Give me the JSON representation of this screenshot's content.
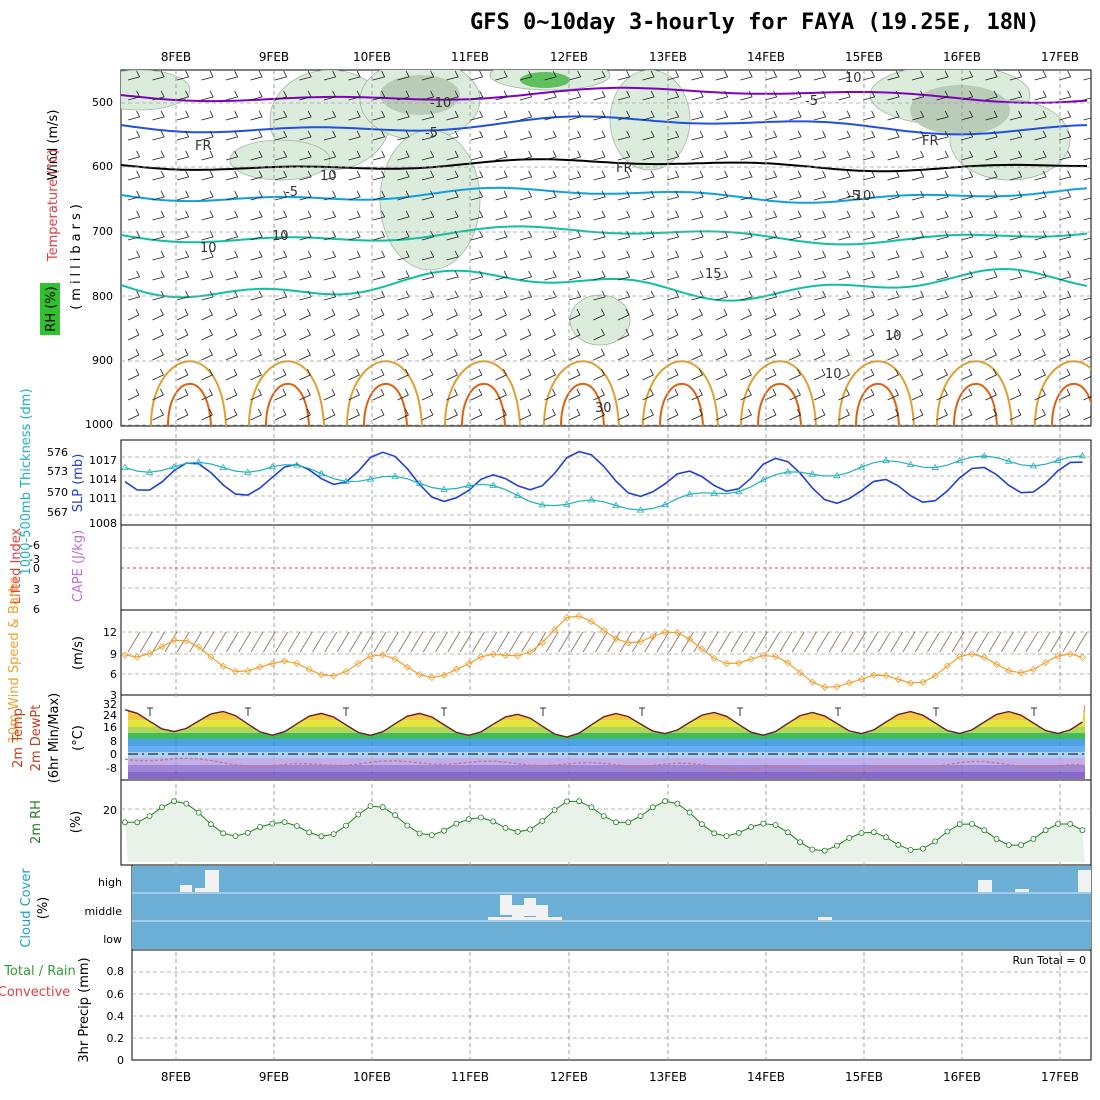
{
  "title": "GFS 0~10day 3-hourly for FAYA (19.25E, 18N)",
  "dates": [
    "8FEB",
    "9FEB",
    "10FEB",
    "11FEB",
    "12FEB",
    "13FEB",
    "14FEB",
    "15FEB",
    "16FEB",
    "17FEB"
  ],
  "run_total": "Run Total = 0",
  "colors": {
    "temp_contour_cold": "#8000c0",
    "temp_contour_blue": "#2050e0",
    "temp_contour_cyan": "#10a0e0",
    "temp_contour_teal": "#10c0a0",
    "temp_contour_warm": "#e0a030",
    "temp_contour_hot": "#e06010",
    "slp_line": "#2040d0",
    "thickness_line": "#20b0c0",
    "wind_speed_line": "#f0a030",
    "rh_fill": "#e8f2e8",
    "rh_line": "#208020",
    "cloud_fill": "#6baed6",
    "grid": "#a0a0a0"
  },
  "panels": {
    "upper_air": {
      "ylabel_wind": "Wind (m/s)",
      "ylabel_temp": "Temperature (°C)",
      "ylabel_rh": "RH (%)",
      "ylabel_units": "(millibars)",
      "levels": [
        "500",
        "600",
        "700",
        "800",
        "900",
        "1000"
      ],
      "contour_labels": [
        "10",
        "-10",
        "-5",
        "-5",
        "-10",
        "FR",
        "FR",
        "FR",
        "-5",
        "-5",
        "10",
        "10",
        "15",
        "30",
        "10",
        "10",
        "10"
      ]
    },
    "slp": {
      "ylabel_thick": "1000-500mb Thickness (dm)",
      "ylabel_slp": "SLP (mb)",
      "left_ticks": [
        "576",
        "573",
        "570",
        "567"
      ],
      "right_ticks": [
        "1017",
        "1014",
        "1011",
        "1008"
      ]
    },
    "cape": {
      "ylabel_li": "Lifted Index",
      "ylabel_cape": "CAPE (J/kg)",
      "ticks": [
        "-6",
        "-3",
        "0",
        "3",
        "6"
      ]
    },
    "wind10": {
      "ylabel": "10m Wind Speed & Barbs",
      "units": "(m/s)",
      "ticks": [
        "12",
        "9",
        "6",
        "3"
      ]
    },
    "temp2m": {
      "ylabel_t": "2m Temp",
      "ylabel_d": "2m DewPt",
      "ylabel_mm": "(6hr Min/Max)",
      "units": "(°C)",
      "ticks": [
        "32",
        "24",
        "16",
        "8",
        "0",
        "-8"
      ]
    },
    "rh2m": {
      "ylabel": "2m RH",
      "units": "(%)",
      "ticks": [
        "20"
      ]
    },
    "cloud": {
      "ylabel": "Cloud Cover",
      "units": "(%)",
      "ticks": [
        "high",
        "middle",
        "low"
      ]
    },
    "precip": {
      "ylabel_total": "Total / Rain",
      "ylabel_conv": "Convective",
      "ylabel_units": "3hr Precip (mm)",
      "ticks": [
        "0.8",
        "0.6",
        "0.4",
        "0.2",
        "0"
      ]
    }
  },
  "chart_data": [
    {
      "type": "line",
      "name": "SLP and 1000-500mb thickness",
      "x": [
        "8FEB",
        "9FEB",
        "10FEB",
        "11FEB",
        "12FEB",
        "13FEB",
        "14FEB",
        "15FEB",
        "16FEB",
        "17FEB"
      ],
      "series": [
        {
          "name": "SLP (mb)",
          "values": [
            1014,
            1013,
            1016,
            1011,
            1016,
            1012,
            1015,
            1011,
            1013,
            1014
          ]
        },
        {
          "name": "1000-500mb Thickness (dm)",
          "values": [
            574,
            574,
            572,
            571,
            568,
            568,
            572,
            574,
            575,
            575
          ]
        }
      ]
    },
    {
      "type": "line",
      "name": "10m Wind Speed",
      "x": [
        "8FEB",
        "9FEB",
        "10FEB",
        "11FEB",
        "12FEB",
        "13FEB",
        "14FEB",
        "15FEB",
        "16FEB",
        "17FEB"
      ],
      "series": [
        {
          "name": "10m Wind Speed",
          "values": [
            9,
            6,
            7,
            6,
            12,
            10,
            7,
            4,
            7,
            7
          ]
        }
      ],
      "ylim": [
        3,
        13
      ]
    },
    {
      "type": "area",
      "name": "2m Temp",
      "x": [
        "8FEB",
        "9FEB",
        "10FEB",
        "11FEB",
        "12FEB",
        "13FEB",
        "14FEB",
        "15FEB",
        "16FEB",
        "17FEB"
      ],
      "series": [
        {
          "name": "2m Temp",
          "values": [
            20,
            18,
            18,
            18,
            17,
            19,
            18,
            19,
            19,
            19
          ]
        },
        {
          "name": "2m DewPt",
          "values": [
            -1,
            -5,
            -3,
            -3,
            -4,
            -4,
            -6,
            -7,
            -3,
            -5
          ]
        }
      ],
      "ylim": [
        -12,
        33
      ]
    },
    {
      "type": "area",
      "name": "2m RH",
      "x": [
        "8FEB",
        "9FEB",
        "10FEB",
        "11FEB",
        "12FEB",
        "13FEB",
        "14FEB",
        "15FEB",
        "16FEB",
        "17FEB"
      ],
      "series": [
        {
          "name": "2m RH",
          "values": [
            22,
            12,
            20,
            14,
            22,
            22,
            12,
            8,
            12,
            12
          ]
        }
      ],
      "ylim": [
        0,
        35
      ]
    },
    {
      "type": "bar",
      "name": "3hr Precip",
      "x": [
        "8FEB",
        "9FEB",
        "10FEB",
        "11FEB",
        "12FEB",
        "13FEB",
        "14FEB",
        "15FEB",
        "16FEB",
        "17FEB"
      ],
      "series": [
        {
          "name": "3hr Precip",
          "values": [
            0,
            0,
            0,
            0,
            0,
            0,
            0,
            0,
            0,
            0
          ]
        }
      ],
      "ylim": [
        0,
        0.9
      ]
    }
  ]
}
